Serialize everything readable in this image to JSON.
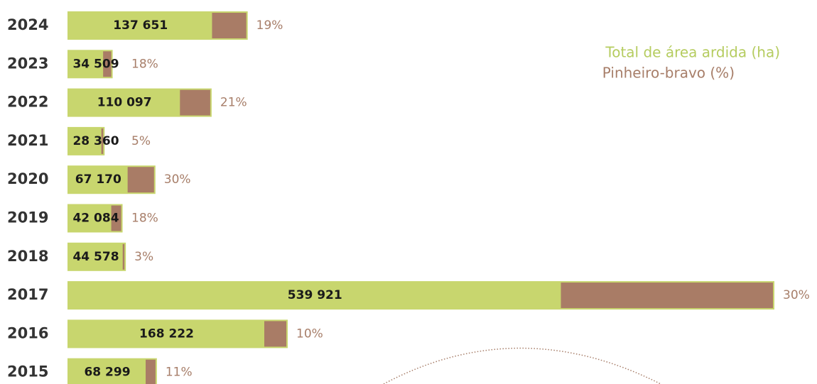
{
  "chart_data": {
    "type": "bar",
    "categories": [
      "2024",
      "2023",
      "2022",
      "2021",
      "2020",
      "2019",
      "2018",
      "2017",
      "2016",
      "2015"
    ],
    "series": [
      {
        "name": "Total de área ardida (ha)",
        "color": "#c8d66e",
        "values": [
          137651,
          34509,
          110097,
          28360,
          67170,
          42084,
          44578,
          539921,
          168222,
          68299
        ],
        "value_labels": [
          "137 651",
          "34 509",
          "110 097",
          "28 360",
          "67 170",
          "42 084",
          "44 578",
          "539 921",
          "168 222",
          "68 299"
        ]
      },
      {
        "name": "Pinheiro-bravo (%)",
        "color": "#a97c66",
        "values": [
          19,
          18,
          21,
          5,
          30,
          18,
          3,
          30,
          10,
          11
        ],
        "value_labels": [
          "19%",
          "18%",
          "21%",
          "5%",
          "30%",
          "18%",
          "3%",
          "30%",
          "10%",
          "11%"
        ]
      }
    ]
  }
}
